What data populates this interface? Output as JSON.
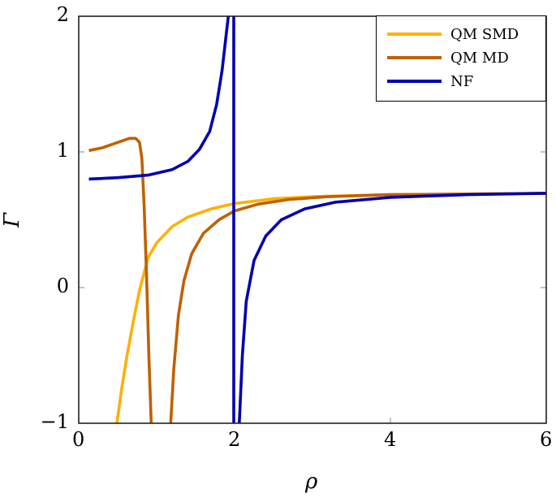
{
  "chart_data": {
    "type": "line",
    "title": "",
    "xlabel": "ρ",
    "ylabel": "Γ",
    "xlim": [
      0,
      6
    ],
    "ylim": [
      -1,
      2
    ],
    "xticks": [
      0,
      2,
      4,
      6
    ],
    "yticks": [
      -1,
      0,
      1,
      2
    ],
    "xtick_labels": [
      "0",
      "2",
      "4",
      "6"
    ],
    "ytick_labels": [
      "−1",
      "0",
      "1",
      "2"
    ],
    "grid": false,
    "legend_position": "upper right",
    "series": [
      {
        "name": "QM SMD",
        "color": "#ffb000",
        "segments": [
          [
            [
              0.49,
              -1.0
            ],
            [
              0.55,
              -0.75
            ],
            [
              0.62,
              -0.5
            ],
            [
              0.7,
              -0.25
            ],
            [
              0.78,
              -0.02
            ],
            [
              0.89,
              0.22
            ],
            [
              1.0,
              0.33
            ],
            [
              1.2,
              0.45
            ],
            [
              1.4,
              0.52
            ],
            [
              1.7,
              0.58
            ],
            [
              2.0,
              0.62
            ],
            [
              2.5,
              0.655
            ],
            [
              3.0,
              0.67
            ],
            [
              4.0,
              0.685
            ],
            [
              5.0,
              0.69
            ],
            [
              6.0,
              0.695
            ]
          ]
        ]
      },
      {
        "name": "QM MD",
        "color": "#c06000",
        "segments": [
          [
            [
              0.13,
              1.01
            ],
            [
              0.3,
              1.03
            ],
            [
              0.5,
              1.07
            ],
            [
              0.65,
              1.1
            ],
            [
              0.73,
              1.1
            ],
            [
              0.78,
              1.07
            ],
            [
              0.81,
              0.95
            ],
            [
              0.84,
              0.6
            ],
            [
              0.87,
              0.1
            ],
            [
              0.9,
              -0.5
            ],
            [
              0.93,
              -1.0
            ]
          ],
          [
            [
              1.18,
              -1.0
            ],
            [
              1.22,
              -0.6
            ],
            [
              1.28,
              -0.2
            ],
            [
              1.35,
              0.05
            ],
            [
              1.45,
              0.25
            ],
            [
              1.6,
              0.4
            ],
            [
              1.8,
              0.5
            ],
            [
              2.0,
              0.565
            ],
            [
              2.3,
              0.615
            ],
            [
              2.7,
              0.65
            ],
            [
              3.2,
              0.67
            ],
            [
              4.0,
              0.685
            ],
            [
              5.0,
              0.69
            ],
            [
              6.0,
              0.695
            ]
          ]
        ]
      },
      {
        "name": "NF",
        "color": "#0000b0",
        "segments": [
          [
            [
              0.13,
              0.8
            ],
            [
              0.5,
              0.81
            ],
            [
              0.9,
              0.83
            ],
            [
              1.2,
              0.87
            ],
            [
              1.4,
              0.93
            ],
            [
              1.55,
              1.02
            ],
            [
              1.68,
              1.15
            ],
            [
              1.77,
              1.35
            ],
            [
              1.84,
              1.6
            ],
            [
              1.89,
              1.85
            ],
            [
              1.92,
              2.0
            ]
          ],
          [
            [
              1.99,
              2.0
            ],
            [
              1.99,
              -1.0
            ]
          ],
          [
            [
              2.06,
              -1.0
            ],
            [
              2.1,
              -0.5
            ],
            [
              2.15,
              -0.1
            ],
            [
              2.25,
              0.2
            ],
            [
              2.4,
              0.38
            ],
            [
              2.6,
              0.5
            ],
            [
              2.9,
              0.58
            ],
            [
              3.3,
              0.63
            ],
            [
              4.0,
              0.665
            ],
            [
              5.0,
              0.685
            ],
            [
              6.0,
              0.695
            ]
          ]
        ]
      }
    ]
  },
  "legend": {
    "items": [
      {
        "label": "QM SMD",
        "color": "#ffb000"
      },
      {
        "label": "QM MD",
        "color": "#c06000"
      },
      {
        "label": "NF",
        "color": "#0000b0"
      }
    ]
  }
}
